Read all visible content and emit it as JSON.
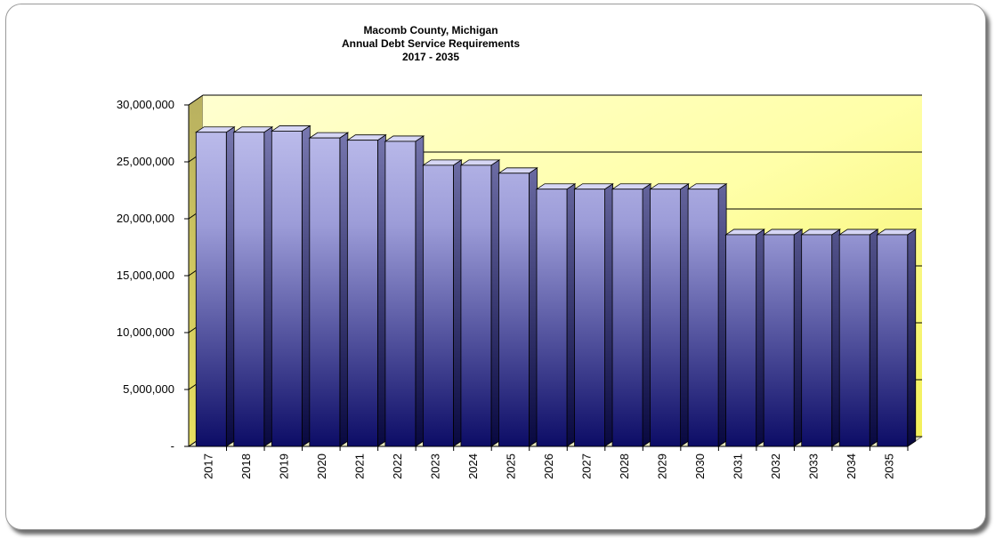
{
  "chart_data": {
    "type": "bar3d",
    "title": [
      "Macomb County, Michigan",
      "Annual Debt Service Requirements",
      "2017 - 2035"
    ],
    "categories": [
      "2017",
      "2018",
      "2019",
      "2020",
      "2021",
      "2022",
      "2023",
      "2024",
      "2025",
      "2026",
      "2027",
      "2028",
      "2029",
      "2030",
      "2031",
      "2032",
      "2033",
      "2034",
      "2035"
    ],
    "values": [
      27600000,
      27600000,
      27700000,
      27100000,
      26900000,
      26800000,
      24700000,
      24700000,
      24000000,
      22600000,
      22600000,
      22600000,
      22600000,
      22600000,
      18600000,
      18600000,
      18600000,
      18600000,
      18600000
    ],
    "ylim": [
      0,
      30000000
    ],
    "yticks": [
      {
        "value": 0,
        "label": "-"
      },
      {
        "value": 5000000,
        "label": "5,000,000"
      },
      {
        "value": 10000000,
        "label": "10,000,000"
      },
      {
        "value": 15000000,
        "label": "15,000,000"
      },
      {
        "value": 20000000,
        "label": "20,000,000"
      },
      {
        "value": 25000000,
        "label": "25,000,000"
      },
      {
        "value": 30000000,
        "label": "30,000,000"
      }
    ],
    "grid": true
  }
}
